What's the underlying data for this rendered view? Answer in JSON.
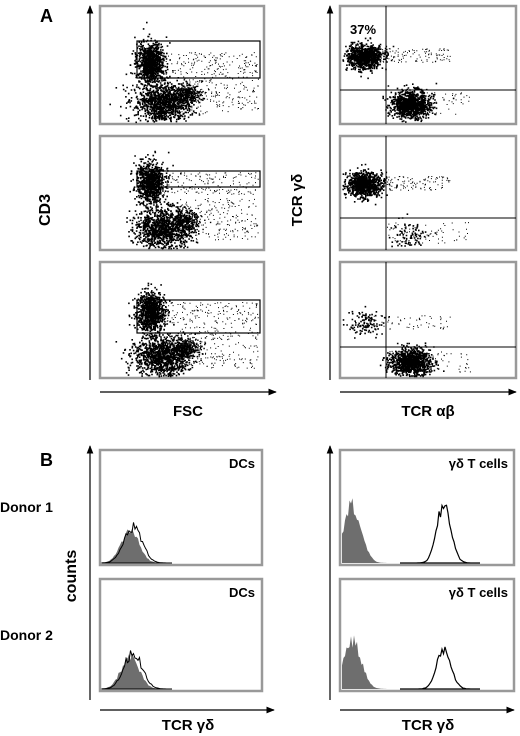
{
  "figure": {
    "panel_a": {
      "label": "A",
      "left_y_label": "CD3",
      "left_x_label": "FSC",
      "right_y_label": "TCR γδ",
      "right_x_label": "TCR αβ",
      "percent_label": "37%"
    },
    "panel_b": {
      "label": "B",
      "y_label": "counts",
      "row_labels": [
        "Donor 1",
        "Donor 2"
      ],
      "left_title": "DCs",
      "right_title": "γδ T cells",
      "x_label": "TCR γδ"
    }
  },
  "colors": {
    "frame": "#999999",
    "dots": "#000000",
    "histogram_fill": "#6e6e6e",
    "histogram_line": "#000000"
  }
}
